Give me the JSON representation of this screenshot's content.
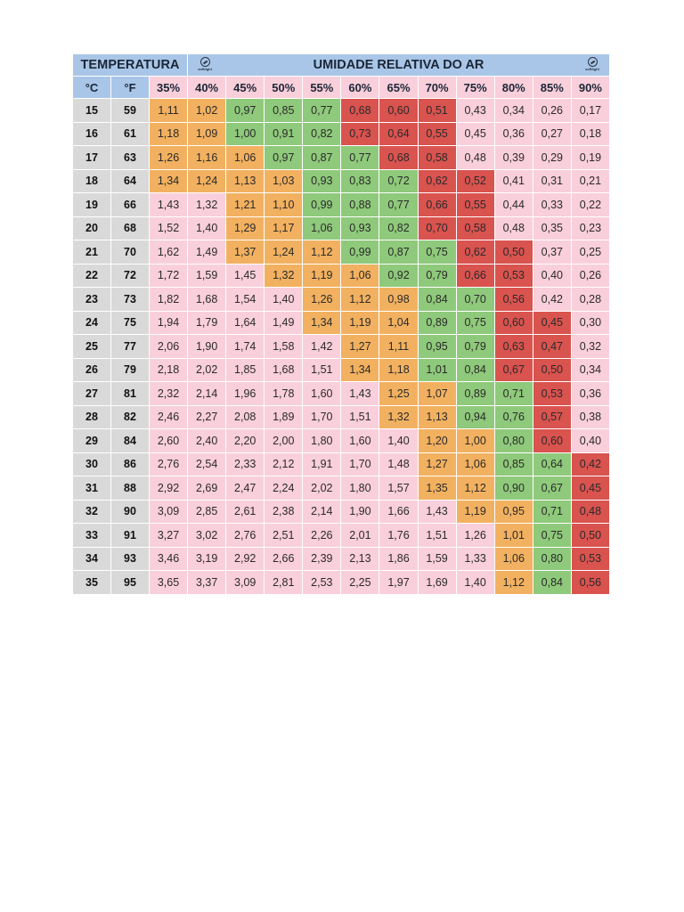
{
  "header": {
    "temperature_title": "TEMPERATURA",
    "humidity_title": "UMIDADE RELATIVA DO AR",
    "logo_text": "softlight"
  },
  "units": {
    "celsius": "°C",
    "fahrenheit": "°F"
  },
  "colors": {
    "header_blue": "#a9c6e8",
    "pink": "#f9cfdb",
    "orange": "#f2b160",
    "green": "#8fc97b",
    "red": "#d9534f",
    "temp_gray": "#d9d9d9"
  },
  "chart_data": {
    "type": "table",
    "humidity_columns": [
      "35%",
      "40%",
      "45%",
      "50%",
      "55%",
      "60%",
      "65%",
      "70%",
      "75%",
      "80%",
      "85%",
      "90%"
    ],
    "rows": [
      {
        "c": "15",
        "f": "59",
        "values": [
          "1,11",
          "1,02",
          "0,97",
          "0,85",
          "0,77",
          "0,68",
          "0,60",
          "0,51",
          "0,43",
          "0,34",
          "0,26",
          "0,17"
        ],
        "colors": [
          "orange",
          "orange",
          "green",
          "green",
          "green",
          "red",
          "red",
          "red",
          "pink",
          "pink",
          "pink",
          "pink"
        ]
      },
      {
        "c": "16",
        "f": "61",
        "values": [
          "1,18",
          "1,09",
          "1,00",
          "0,91",
          "0,82",
          "0,73",
          "0,64",
          "0,55",
          "0,45",
          "0,36",
          "0,27",
          "0,18"
        ],
        "colors": [
          "orange",
          "orange",
          "green",
          "green",
          "green",
          "red",
          "red",
          "red",
          "pink",
          "pink",
          "pink",
          "pink"
        ]
      },
      {
        "c": "17",
        "f": "63",
        "values": [
          "1,26",
          "1,16",
          "1,06",
          "0,97",
          "0,87",
          "0,77",
          "0,68",
          "0,58",
          "0,48",
          "0,39",
          "0,29",
          "0,19"
        ],
        "colors": [
          "orange",
          "orange",
          "orange",
          "green",
          "green",
          "green",
          "red",
          "red",
          "pink",
          "pink",
          "pink",
          "pink"
        ]
      },
      {
        "c": "18",
        "f": "64",
        "values": [
          "1,34",
          "1,24",
          "1,13",
          "1,03",
          "0,93",
          "0,83",
          "0,72",
          "0,62",
          "0,52",
          "0,41",
          "0,31",
          "0,21"
        ],
        "colors": [
          "orange",
          "orange",
          "orange",
          "orange",
          "green",
          "green",
          "green",
          "red",
          "red",
          "pink",
          "pink",
          "pink"
        ]
      },
      {
        "c": "19",
        "f": "66",
        "values": [
          "1,43",
          "1,32",
          "1,21",
          "1,10",
          "0,99",
          "0,88",
          "0,77",
          "0,66",
          "0,55",
          "0,44",
          "0,33",
          "0,22"
        ],
        "colors": [
          "pink",
          "pink",
          "orange",
          "orange",
          "green",
          "green",
          "green",
          "red",
          "red",
          "pink",
          "pink",
          "pink"
        ]
      },
      {
        "c": "20",
        "f": "68",
        "values": [
          "1,52",
          "1,40",
          "1,29",
          "1,17",
          "1,06",
          "0,93",
          "0,82",
          "0,70",
          "0,58",
          "0,48",
          "0,35",
          "0,23"
        ],
        "colors": [
          "pink",
          "pink",
          "orange",
          "orange",
          "green",
          "green",
          "green",
          "red",
          "red",
          "pink",
          "pink",
          "pink"
        ]
      },
      {
        "c": "21",
        "f": "70",
        "values": [
          "1,62",
          "1,49",
          "1,37",
          "1,24",
          "1,12",
          "0,99",
          "0,87",
          "0,75",
          "0,62",
          "0,50",
          "0,37",
          "0,25"
        ],
        "colors": [
          "pink",
          "pink",
          "orange",
          "orange",
          "orange",
          "green",
          "green",
          "green",
          "red",
          "red",
          "pink",
          "pink"
        ]
      },
      {
        "c": "22",
        "f": "72",
        "values": [
          "1,72",
          "1,59",
          "1,45",
          "1,32",
          "1,19",
          "1,06",
          "0,92",
          "0,79",
          "0,66",
          "0,53",
          "0,40",
          "0,26"
        ],
        "colors": [
          "pink",
          "pink",
          "pink",
          "orange",
          "orange",
          "orange",
          "green",
          "green",
          "red",
          "red",
          "pink",
          "pink"
        ]
      },
      {
        "c": "23",
        "f": "73",
        "values": [
          "1,82",
          "1,68",
          "1,54",
          "1,40",
          "1,26",
          "1,12",
          "0,98",
          "0,84",
          "0,70",
          "0,56",
          "0,42",
          "0,28"
        ],
        "colors": [
          "pink",
          "pink",
          "pink",
          "pink",
          "orange",
          "orange",
          "orange",
          "green",
          "green",
          "red",
          "pink",
          "pink"
        ]
      },
      {
        "c": "24",
        "f": "75",
        "values": [
          "1,94",
          "1,79",
          "1,64",
          "1,49",
          "1,34",
          "1,19",
          "1,04",
          "0,89",
          "0,75",
          "0,60",
          "0,45",
          "0,30"
        ],
        "colors": [
          "pink",
          "pink",
          "pink",
          "pink",
          "orange",
          "orange",
          "orange",
          "green",
          "green",
          "red",
          "red",
          "pink"
        ]
      },
      {
        "c": "25",
        "f": "77",
        "values": [
          "2,06",
          "1,90",
          "1,74",
          "1,58",
          "1,42",
          "1,27",
          "1,11",
          "0,95",
          "0,79",
          "0,63",
          "0,47",
          "0,32"
        ],
        "colors": [
          "pink",
          "pink",
          "pink",
          "pink",
          "pink",
          "orange",
          "orange",
          "green",
          "green",
          "red",
          "red",
          "pink"
        ]
      },
      {
        "c": "26",
        "f": "79",
        "values": [
          "2,18",
          "2,02",
          "1,85",
          "1,68",
          "1,51",
          "1,34",
          "1,18",
          "1,01",
          "0,84",
          "0,67",
          "0,50",
          "0,34"
        ],
        "colors": [
          "pink",
          "pink",
          "pink",
          "pink",
          "pink",
          "orange",
          "orange",
          "green",
          "green",
          "red",
          "red",
          "pink"
        ]
      },
      {
        "c": "27",
        "f": "81",
        "values": [
          "2,32",
          "2,14",
          "1,96",
          "1,78",
          "1,60",
          "1,43",
          "1,25",
          "1,07",
          "0,89",
          "0,71",
          "0,53",
          "0,36"
        ],
        "colors": [
          "pink",
          "pink",
          "pink",
          "pink",
          "pink",
          "pink",
          "orange",
          "orange",
          "green",
          "green",
          "red",
          "pink"
        ]
      },
      {
        "c": "28",
        "f": "82",
        "values": [
          "2,46",
          "2,27",
          "2,08",
          "1,89",
          "1,70",
          "1,51",
          "1,32",
          "1,13",
          "0,94",
          "0,76",
          "0,57",
          "0,38"
        ],
        "colors": [
          "pink",
          "pink",
          "pink",
          "pink",
          "pink",
          "pink",
          "orange",
          "orange",
          "green",
          "green",
          "red",
          "pink"
        ]
      },
      {
        "c": "29",
        "f": "84",
        "values": [
          "2,60",
          "2,40",
          "2,20",
          "2,00",
          "1,80",
          "1,60",
          "1,40",
          "1,20",
          "1,00",
          "0,80",
          "0,60",
          "0,40"
        ],
        "colors": [
          "pink",
          "pink",
          "pink",
          "pink",
          "pink",
          "pink",
          "pink",
          "orange",
          "orange",
          "green",
          "red",
          "pink"
        ]
      },
      {
        "c": "30",
        "f": "86",
        "values": [
          "2,76",
          "2,54",
          "2,33",
          "2,12",
          "1,91",
          "1,70",
          "1,48",
          "1,27",
          "1,06",
          "0,85",
          "0,64",
          "0,42"
        ],
        "colors": [
          "pink",
          "pink",
          "pink",
          "pink",
          "pink",
          "pink",
          "pink",
          "orange",
          "orange",
          "green",
          "green",
          "red"
        ]
      },
      {
        "c": "31",
        "f": "88",
        "values": [
          "2,92",
          "2,69",
          "2,47",
          "2,24",
          "2,02",
          "1,80",
          "1,57",
          "1,35",
          "1,12",
          "0,90",
          "0,67",
          "0,45"
        ],
        "colors": [
          "pink",
          "pink",
          "pink",
          "pink",
          "pink",
          "pink",
          "pink",
          "orange",
          "orange",
          "green",
          "green",
          "red"
        ]
      },
      {
        "c": "32",
        "f": "90",
        "values": [
          "3,09",
          "2,85",
          "2,61",
          "2,38",
          "2,14",
          "1,90",
          "1,66",
          "1,43",
          "1,19",
          "0,95",
          "0,71",
          "0,48"
        ],
        "colors": [
          "pink",
          "pink",
          "pink",
          "pink",
          "pink",
          "pink",
          "pink",
          "pink",
          "orange",
          "orange",
          "green",
          "red"
        ]
      },
      {
        "c": "33",
        "f": "91",
        "values": [
          "3,27",
          "3,02",
          "2,76",
          "2,51",
          "2,26",
          "2,01",
          "1,76",
          "1,51",
          "1,26",
          "1,01",
          "0,75",
          "0,50"
        ],
        "colors": [
          "pink",
          "pink",
          "pink",
          "pink",
          "pink",
          "pink",
          "pink",
          "pink",
          "pink",
          "orange",
          "green",
          "red"
        ]
      },
      {
        "c": "34",
        "f": "93",
        "values": [
          "3,46",
          "3,19",
          "2,92",
          "2,66",
          "2,39",
          "2,13",
          "1,86",
          "1,59",
          "1,33",
          "1,06",
          "0,80",
          "0,53"
        ],
        "colors": [
          "pink",
          "pink",
          "pink",
          "pink",
          "pink",
          "pink",
          "pink",
          "pink",
          "pink",
          "orange",
          "green",
          "red"
        ]
      },
      {
        "c": "35",
        "f": "95",
        "values": [
          "3,65",
          "3,37",
          "3,09",
          "2,81",
          "2,53",
          "2,25",
          "1,97",
          "1,69",
          "1,40",
          "1,12",
          "0,84",
          "0,56"
        ],
        "colors": [
          "pink",
          "pink",
          "pink",
          "pink",
          "pink",
          "pink",
          "pink",
          "pink",
          "pink",
          "orange",
          "green",
          "red"
        ]
      }
    ]
  }
}
